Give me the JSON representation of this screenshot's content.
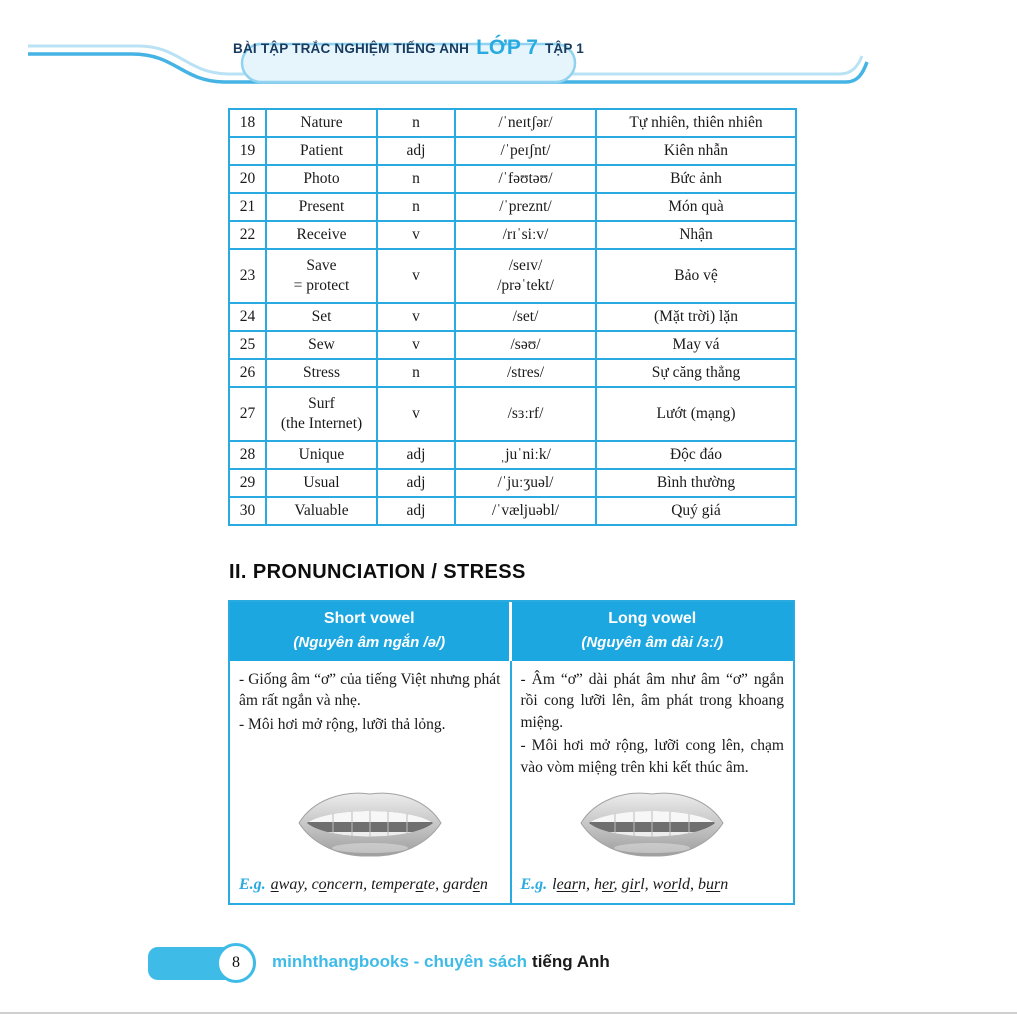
{
  "header": {
    "title": "BÀI TẬP TRẮC NGHIỆM TIẾNG ANH",
    "grade": "LỚP 7",
    "volume": "TẬP 1"
  },
  "vocab_table": {
    "rows": [
      {
        "no": "18",
        "word": "Nature",
        "pos": "n",
        "ipa": "/ˈneɪtʃər/",
        "meaning": "Tự nhiên, thiên nhiên"
      },
      {
        "no": "19",
        "word": "Patient",
        "pos": "adj",
        "ipa": "/ˈpeɪʃnt/",
        "meaning": "Kiên nhẫn"
      },
      {
        "no": "20",
        "word": "Photo",
        "pos": "n",
        "ipa": "/ˈfəʊtəʊ/",
        "meaning": "Bức ảnh"
      },
      {
        "no": "21",
        "word": "Present",
        "pos": "n",
        "ipa": "/ˈpreznt/",
        "meaning": "Món quà"
      },
      {
        "no": "22",
        "word": "Receive",
        "pos": "v",
        "ipa": "/rɪˈsiːv/",
        "meaning": "Nhận"
      },
      {
        "no": "23",
        "word": "Save\n= protect",
        "pos": "v",
        "ipa": "/seɪv/\n/prəˈtekt/",
        "meaning": "Bảo vệ"
      },
      {
        "no": "24",
        "word": "Set",
        "pos": "v",
        "ipa": "/set/",
        "meaning": "(Mặt trời) lặn"
      },
      {
        "no": "25",
        "word": "Sew",
        "pos": "v",
        "ipa": "/səʊ/",
        "meaning": "May vá"
      },
      {
        "no": "26",
        "word": "Stress",
        "pos": "n",
        "ipa": "/stres/",
        "meaning": "Sự căng thẳng"
      },
      {
        "no": "27",
        "word": "Surf\n(the Internet)",
        "pos": "v",
        "ipa": "/sɜːrf/",
        "meaning": "Lướt (mạng)"
      },
      {
        "no": "28",
        "word": "Unique",
        "pos": "adj",
        "ipa": "ˌjuˈniːk/",
        "meaning": "Độc đáo"
      },
      {
        "no": "29",
        "word": "Usual",
        "pos": "adj",
        "ipa": "/ˈjuːʒuəl/",
        "meaning": "Bình thường"
      },
      {
        "no": "30",
        "word": "Valuable",
        "pos": "adj",
        "ipa": "/ˈvæljuəbl/",
        "meaning": "Quý giá"
      }
    ]
  },
  "section": {
    "heading": "II. PRONUNCIATION / STRESS"
  },
  "pron_table": {
    "short": {
      "title": "Short vowel",
      "subtitle": "(Nguyên âm ngắn /ə/)",
      "bullet1": "- Giống âm “ơ” của tiếng Việt nhưng phát âm rất ngắn và nhẹ.",
      "bullet2": "- Môi hơi mở rộng, lưỡi thả lỏng.",
      "eg_label": "E.g.",
      "examples": [
        {
          "t": "a",
          "u": true
        },
        {
          "t": "way, c",
          "u": false
        },
        {
          "t": "o",
          "u": true
        },
        {
          "t": "ncern, temper",
          "u": false
        },
        {
          "t": "a",
          "u": true
        },
        {
          "t": "te, gard",
          "u": false
        },
        {
          "t": "e",
          "u": true
        },
        {
          "t": "n",
          "u": false
        }
      ]
    },
    "long": {
      "title": "Long vowel",
      "subtitle": "(Nguyên âm dài /ɜː/)",
      "bullet1": "- Âm “ơ” dài phát âm như âm “ơ” ngắn rồi cong lưỡi lên, âm phát trong khoang miệng.",
      "bullet2": "- Môi hơi mở rộng, lưỡi cong lên, chạm vào vòm miệng trên khi kết thúc âm.",
      "eg_label": "E.g.",
      "examples": [
        {
          "t": "l",
          "u": false
        },
        {
          "t": "ear",
          "u": true
        },
        {
          "t": "n, h",
          "u": false
        },
        {
          "t": "er",
          "u": true
        },
        {
          "t": ", g",
          "u": false
        },
        {
          "t": "ir",
          "u": true
        },
        {
          "t": "l, w",
          "u": false
        },
        {
          "t": "or",
          "u": true
        },
        {
          "t": "ld, b",
          "u": false
        },
        {
          "t": "ur",
          "u": true
        },
        {
          "t": "n",
          "u": false
        }
      ]
    }
  },
  "footer": {
    "page_number": "8",
    "brand": "minhthangbooks - chuyên sách",
    "brand_suffix": "tiếng Anh"
  },
  "colors": {
    "accent": "#29abe2",
    "pron_header_bg": "#1ca7e1",
    "title_navy": "#173a5e",
    "footer_cyan": "#3fbbe8"
  }
}
